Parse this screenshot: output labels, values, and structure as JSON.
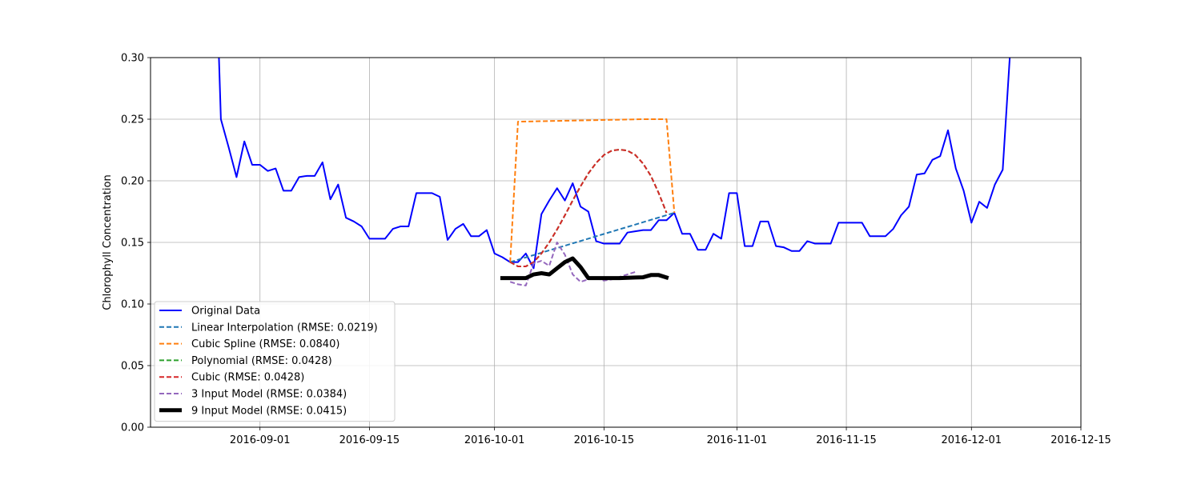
{
  "chart_data": {
    "type": "line",
    "title": "",
    "xlabel": "",
    "ylabel": "Chlorophyll Concentration",
    "x_axis": "date",
    "xlim": [
      "2016-08-18",
      "2016-12-15"
    ],
    "ylim": [
      0,
      0.3
    ],
    "x_ticks": [
      {
        "date": "2016-09-01",
        "label": "2016-09-01"
      },
      {
        "date": "2016-09-15",
        "label": "2016-09-15"
      },
      {
        "date": "2016-10-01",
        "label": "2016-10-01"
      },
      {
        "date": "2016-10-15",
        "label": "2016-10-15"
      },
      {
        "date": "2016-11-01",
        "label": "2016-11-01"
      },
      {
        "date": "2016-11-15",
        "label": "2016-11-15"
      },
      {
        "date": "2016-12-01",
        "label": "2016-12-01"
      },
      {
        "date": "2016-12-15",
        "label": "2016-12-15"
      }
    ],
    "y_ticks": [
      {
        "value": 0.0,
        "label": "0.00"
      },
      {
        "value": 0.05,
        "label": "0.05"
      },
      {
        "value": 0.1,
        "label": "0.10"
      },
      {
        "value": 0.15,
        "label": "0.15"
      },
      {
        "value": 0.2,
        "label": "0.20"
      },
      {
        "value": 0.25,
        "label": "0.25"
      },
      {
        "value": 0.3,
        "label": "0.30"
      }
    ],
    "grid": true,
    "legend_position": "lower-left",
    "series": [
      {
        "name": "Original Data",
        "color": "#0000ff",
        "style": "solid",
        "width": 2,
        "points": [
          [
            "2016-08-26",
            0.45
          ],
          [
            "2016-08-27",
            0.25
          ],
          [
            "2016-08-28",
            0.227
          ],
          [
            "2016-08-29",
            0.203
          ],
          [
            "2016-08-30",
            0.232
          ],
          [
            "2016-08-31",
            0.213
          ],
          [
            "2016-09-01",
            0.213
          ],
          [
            "2016-09-02",
            0.208
          ],
          [
            "2016-09-03",
            0.21
          ],
          [
            "2016-09-04",
            0.192
          ],
          [
            "2016-09-05",
            0.192
          ],
          [
            "2016-09-06",
            0.203
          ],
          [
            "2016-09-07",
            0.204
          ],
          [
            "2016-09-08",
            0.204
          ],
          [
            "2016-09-09",
            0.215
          ],
          [
            "2016-09-10",
            0.185
          ],
          [
            "2016-09-11",
            0.197
          ],
          [
            "2016-09-12",
            0.17
          ],
          [
            "2016-09-13",
            0.167
          ],
          [
            "2016-09-14",
            0.163
          ],
          [
            "2016-09-15",
            0.153
          ],
          [
            "2016-09-16",
            0.153
          ],
          [
            "2016-09-17",
            0.153
          ],
          [
            "2016-09-18",
            0.161
          ],
          [
            "2016-09-19",
            0.163
          ],
          [
            "2016-09-20",
            0.163
          ],
          [
            "2016-09-21",
            0.19
          ],
          [
            "2016-09-22",
            0.19
          ],
          [
            "2016-09-23",
            0.19
          ],
          [
            "2016-09-24",
            0.187
          ],
          [
            "2016-09-25",
            0.152
          ],
          [
            "2016-09-26",
            0.161
          ],
          [
            "2016-09-27",
            0.165
          ],
          [
            "2016-09-28",
            0.155
          ],
          [
            "2016-09-29",
            0.155
          ],
          [
            "2016-09-30",
            0.16
          ],
          [
            "2016-10-01",
            0.141
          ],
          [
            "2016-10-02",
            0.138
          ],
          [
            "2016-10-03",
            0.134
          ],
          [
            "2016-10-04",
            0.134
          ],
          [
            "2016-10-05",
            0.141
          ],
          [
            "2016-10-06",
            0.129
          ],
          [
            "2016-10-07",
            0.173
          ],
          [
            "2016-10-08",
            0.184
          ],
          [
            "2016-10-09",
            0.194
          ],
          [
            "2016-10-10",
            0.184
          ],
          [
            "2016-10-11",
            0.198
          ],
          [
            "2016-10-12",
            0.179
          ],
          [
            "2016-10-13",
            0.175
          ],
          [
            "2016-10-14",
            0.151
          ],
          [
            "2016-10-15",
            0.149
          ],
          [
            "2016-10-16",
            0.149
          ],
          [
            "2016-10-17",
            0.149
          ],
          [
            "2016-10-18",
            0.158
          ],
          [
            "2016-10-19",
            0.159
          ],
          [
            "2016-10-20",
            0.16
          ],
          [
            "2016-10-21",
            0.16
          ],
          [
            "2016-10-22",
            0.168
          ],
          [
            "2016-10-23",
            0.168
          ],
          [
            "2016-10-24",
            0.174
          ],
          [
            "2016-10-25",
            0.157
          ],
          [
            "2016-10-26",
            0.157
          ],
          [
            "2016-10-27",
            0.144
          ],
          [
            "2016-10-28",
            0.144
          ],
          [
            "2016-10-29",
            0.157
          ],
          [
            "2016-10-30",
            0.153
          ],
          [
            "2016-10-31",
            0.19
          ],
          [
            "2016-11-01",
            0.19
          ],
          [
            "2016-11-02",
            0.147
          ],
          [
            "2016-11-03",
            0.147
          ],
          [
            "2016-11-04",
            0.167
          ],
          [
            "2016-11-05",
            0.167
          ],
          [
            "2016-11-06",
            0.147
          ],
          [
            "2016-11-07",
            0.146
          ],
          [
            "2016-11-08",
            0.143
          ],
          [
            "2016-11-09",
            0.143
          ],
          [
            "2016-11-10",
            0.151
          ],
          [
            "2016-11-11",
            0.149
          ],
          [
            "2016-11-12",
            0.149
          ],
          [
            "2016-11-13",
            0.149
          ],
          [
            "2016-11-14",
            0.166
          ],
          [
            "2016-11-15",
            0.166
          ],
          [
            "2016-11-16",
            0.166
          ],
          [
            "2016-11-17",
            0.166
          ],
          [
            "2016-11-18",
            0.155
          ],
          [
            "2016-11-19",
            0.155
          ],
          [
            "2016-11-20",
            0.155
          ],
          [
            "2016-11-21",
            0.161
          ],
          [
            "2016-11-22",
            0.172
          ],
          [
            "2016-11-23",
            0.179
          ],
          [
            "2016-11-24",
            0.205
          ],
          [
            "2016-11-25",
            0.206
          ],
          [
            "2016-11-26",
            0.217
          ],
          [
            "2016-11-27",
            0.22
          ],
          [
            "2016-11-28",
            0.241
          ],
          [
            "2016-11-29",
            0.21
          ],
          [
            "2016-11-30",
            0.192
          ],
          [
            "2016-12-01",
            0.166
          ],
          [
            "2016-12-02",
            0.183
          ],
          [
            "2016-12-03",
            0.178
          ],
          [
            "2016-12-04",
            0.197
          ],
          [
            "2016-12-05",
            0.209
          ],
          [
            "2016-12-06",
            0.31
          ]
        ]
      },
      {
        "name": "Linear Interpolation (RMSE: 0.0219)",
        "color": "#1f77b4",
        "style": "dashed",
        "width": 2,
        "points": [
          [
            "2016-10-03",
            0.134
          ],
          [
            "2016-10-24",
            0.174
          ]
        ]
      },
      {
        "name": "Cubic Spline (RMSE: 0.0840)",
        "color": "#ff7f0e",
        "style": "dashed",
        "width": 2,
        "points": [
          [
            "2016-10-03",
            0.134
          ],
          [
            "2016-10-04",
            0.248
          ],
          [
            "2016-10-08",
            0.2485
          ],
          [
            "2016-10-12",
            0.249
          ],
          [
            "2016-10-16",
            0.2495
          ],
          [
            "2016-10-20",
            0.25
          ],
          [
            "2016-10-23",
            0.25
          ],
          [
            "2016-10-24",
            0.174
          ]
        ]
      },
      {
        "name": "Polynomial (RMSE: 0.0428)",
        "color": "#2ca02c",
        "style": "dashed",
        "width": 2,
        "points": [
          [
            "2016-10-03",
            0.134
          ],
          [
            "2016-10-04",
            0.1305
          ],
          [
            "2016-10-05",
            0.1305
          ],
          [
            "2016-10-06",
            0.134
          ],
          [
            "2016-10-07",
            0.141
          ],
          [
            "2016-10-08",
            0.15
          ],
          [
            "2016-10-09",
            0.1605
          ],
          [
            "2016-10-10",
            0.172
          ],
          [
            "2016-10-11",
            0.184
          ],
          [
            "2016-10-12",
            0.1955
          ],
          [
            "2016-10-13",
            0.206
          ],
          [
            "2016-10-14",
            0.2145
          ],
          [
            "2016-10-15",
            0.221
          ],
          [
            "2016-10-16",
            0.2245
          ],
          [
            "2016-10-17",
            0.2253
          ],
          [
            "2016-10-18",
            0.2245
          ],
          [
            "2016-10-19",
            0.221
          ],
          [
            "2016-10-20",
            0.214
          ],
          [
            "2016-10-21",
            0.204
          ],
          [
            "2016-10-22",
            0.19
          ],
          [
            "2016-10-23",
            0.174
          ]
        ]
      },
      {
        "name": "Cubic (RMSE: 0.0428)",
        "color": "#d62728",
        "style": "dashed",
        "width": 2,
        "points": [
          [
            "2016-10-03",
            0.134
          ],
          [
            "2016-10-04",
            0.1305
          ],
          [
            "2016-10-05",
            0.1305
          ],
          [
            "2016-10-06",
            0.134
          ],
          [
            "2016-10-07",
            0.141
          ],
          [
            "2016-10-08",
            0.15
          ],
          [
            "2016-10-09",
            0.1605
          ],
          [
            "2016-10-10",
            0.172
          ],
          [
            "2016-10-11",
            0.184
          ],
          [
            "2016-10-12",
            0.1955
          ],
          [
            "2016-10-13",
            0.206
          ],
          [
            "2016-10-14",
            0.2145
          ],
          [
            "2016-10-15",
            0.221
          ],
          [
            "2016-10-16",
            0.2245
          ],
          [
            "2016-10-17",
            0.2253
          ],
          [
            "2016-10-18",
            0.2245
          ],
          [
            "2016-10-19",
            0.221
          ],
          [
            "2016-10-20",
            0.214
          ],
          [
            "2016-10-21",
            0.204
          ],
          [
            "2016-10-22",
            0.19
          ],
          [
            "2016-10-23",
            0.174
          ]
        ]
      },
      {
        "name": "3 Input Model (RMSE: 0.0384)",
        "color": "#9467bd",
        "style": "dashed",
        "width": 2,
        "points": [
          [
            "2016-10-03",
            0.118
          ],
          [
            "2016-10-04",
            0.116
          ],
          [
            "2016-10-05",
            0.115
          ],
          [
            "2016-10-06",
            0.133
          ],
          [
            "2016-10-07",
            0.135
          ],
          [
            "2016-10-08",
            0.131
          ],
          [
            "2016-10-09",
            0.15
          ],
          [
            "2016-10-10",
            0.14
          ],
          [
            "2016-10-11",
            0.124
          ],
          [
            "2016-10-12",
            0.118
          ],
          [
            "2016-10-13",
            0.12
          ],
          [
            "2016-10-14",
            0.121
          ],
          [
            "2016-10-15",
            0.119
          ],
          [
            "2016-10-16",
            0.12
          ],
          [
            "2016-10-17",
            0.122
          ],
          [
            "2016-10-18",
            0.124
          ],
          [
            "2016-10-19",
            0.126
          ]
        ]
      },
      {
        "name": "9 Input Model (RMSE: 0.0415)",
        "color": "#000000",
        "style": "solid",
        "width": 5,
        "points": [
          [
            "2016-10-02",
            0.121
          ],
          [
            "2016-10-03",
            0.121
          ],
          [
            "2016-10-04",
            0.121
          ],
          [
            "2016-10-05",
            0.121
          ],
          [
            "2016-10-06",
            0.124
          ],
          [
            "2016-10-07",
            0.125
          ],
          [
            "2016-10-08",
            0.124
          ],
          [
            "2016-10-09",
            0.129
          ],
          [
            "2016-10-10",
            0.134
          ],
          [
            "2016-10-11",
            0.137
          ],
          [
            "2016-10-12",
            0.13
          ],
          [
            "2016-10-13",
            0.121
          ],
          [
            "2016-10-14",
            0.121
          ],
          [
            "2016-10-15",
            0.121
          ],
          [
            "2016-10-16",
            0.121
          ],
          [
            "2016-10-17",
            0.121
          ],
          [
            "2016-10-18",
            0.1213
          ],
          [
            "2016-10-19",
            0.1215
          ],
          [
            "2016-10-20",
            0.1217
          ],
          [
            "2016-10-21",
            0.1235
          ],
          [
            "2016-10-22",
            0.1235
          ],
          [
            "2016-10-23",
            0.1215
          ]
        ]
      }
    ]
  }
}
